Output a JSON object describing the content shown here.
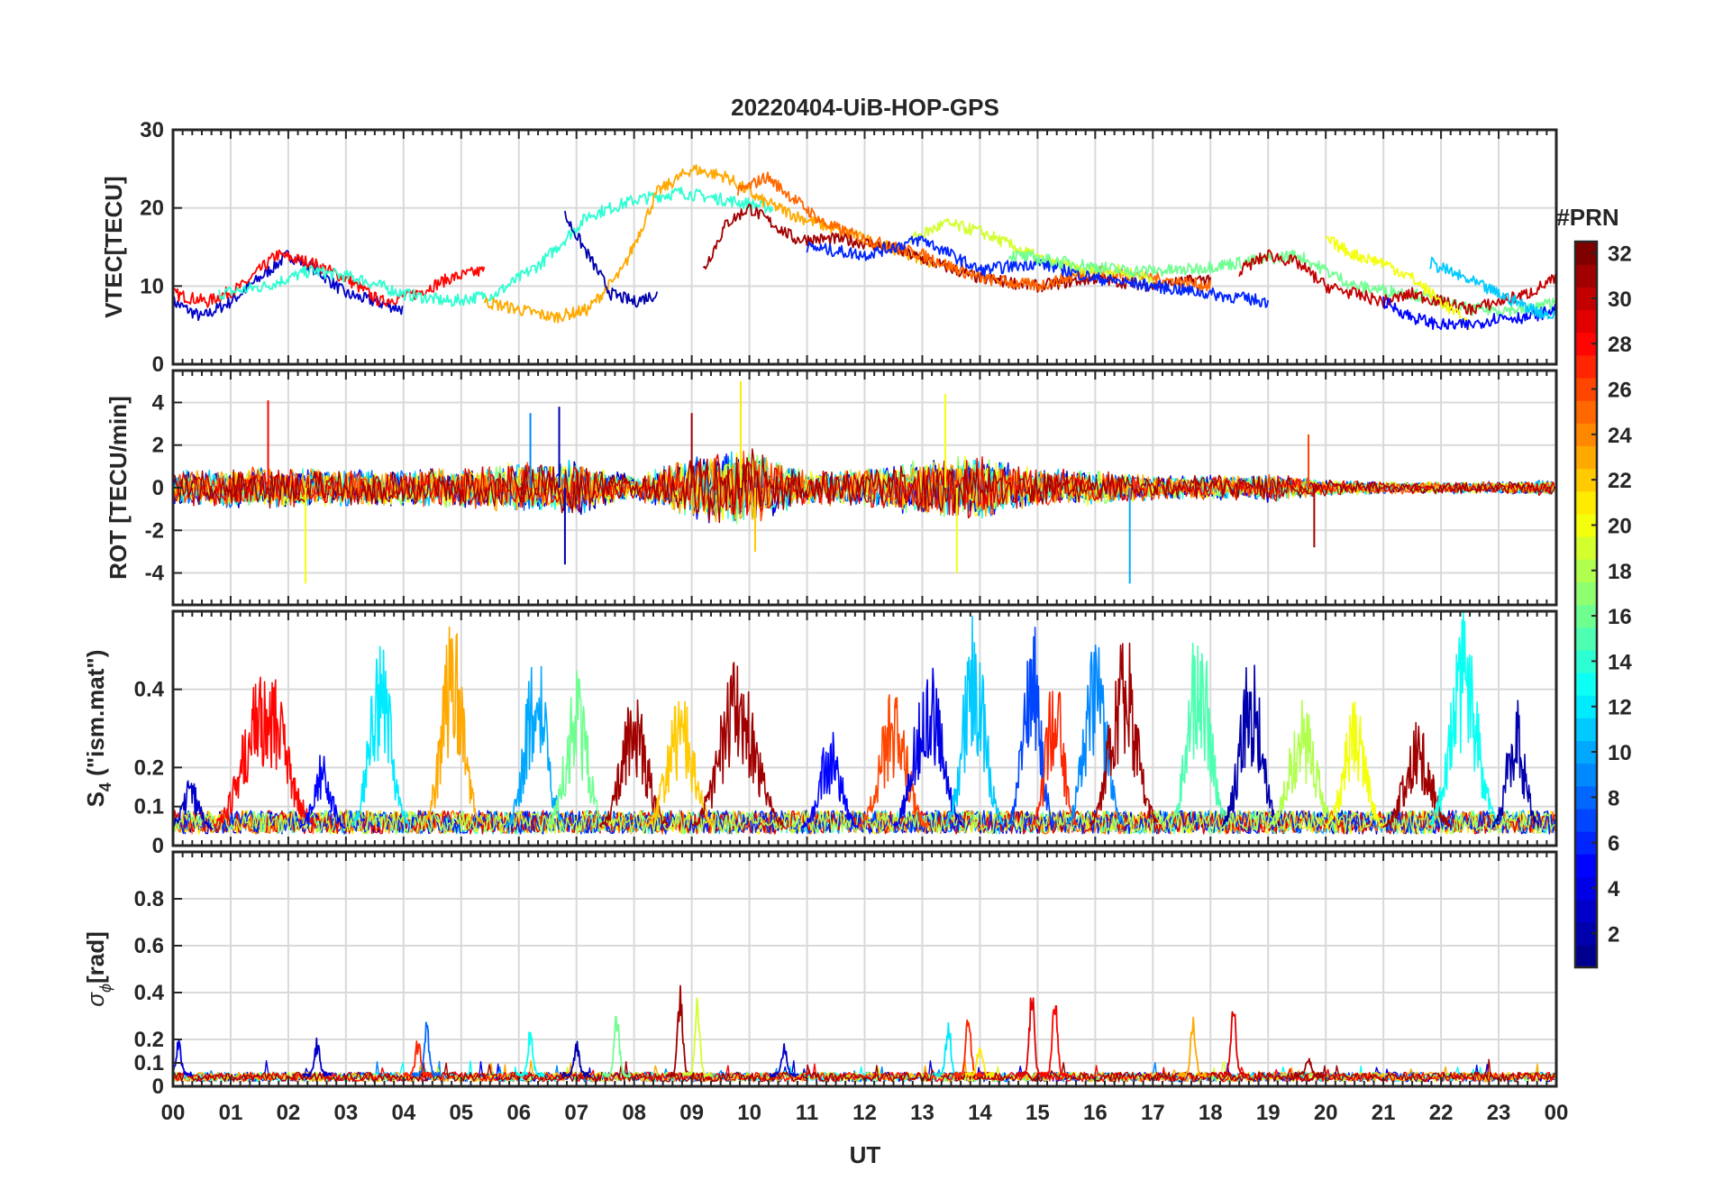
{
  "figure": {
    "title": "20220404-UiB-HOP-GPS",
    "xlabel": "UT",
    "x_ticks": [
      "00",
      "01",
      "02",
      "03",
      "04",
      "05",
      "06",
      "07",
      "08",
      "09",
      "10",
      "11",
      "12",
      "13",
      "14",
      "15",
      "16",
      "17",
      "18",
      "19",
      "20",
      "21",
      "22",
      "23",
      "00"
    ]
  },
  "colorbar": {
    "label": "#PRN",
    "range": [
      1,
      32
    ],
    "ticks": [
      2,
      4,
      6,
      8,
      10,
      12,
      14,
      16,
      18,
      20,
      22,
      24,
      26,
      28,
      30,
      32
    ],
    "colors": [
      "#00008f",
      "#0000ff",
      "#0080ff",
      "#00ffff",
      "#80ff80",
      "#ffff00",
      "#ff8000",
      "#ff0000",
      "#800000"
    ]
  },
  "chart_data": [
    {
      "type": "line",
      "id": "vtec",
      "ylabel": "VTEC[TECU]",
      "ylim": [
        0,
        30
      ],
      "yticks": [
        0,
        10,
        20,
        30
      ],
      "xlim": [
        0,
        24
      ],
      "grid": true,
      "series": [
        {
          "prn": 3,
          "x": [
            0,
            0.5,
            1,
            1.5,
            2,
            2.5,
            3,
            3.5,
            4
          ],
          "y": [
            8,
            6,
            8,
            11,
            14,
            12,
            9,
            8,
            7
          ]
        },
        {
          "prn": 28,
          "x": [
            0,
            0.6,
            1.2,
            1.8,
            2.4,
            3,
            3.6,
            4.2,
            4.8,
            5.4
          ],
          "y": [
            9,
            8,
            10,
            14,
            13,
            11,
            8,
            9,
            11,
            12
          ]
        },
        {
          "prn": 14,
          "x": [
            0.8,
            1.6,
            2.4,
            3.2,
            4,
            4.8,
            5.6,
            6.4,
            7.2,
            8,
            8.8,
            9.6,
            10.4
          ],
          "y": [
            9,
            10,
            12,
            11,
            9,
            8,
            9,
            13,
            19,
            21,
            22,
            21,
            20
          ]
        },
        {
          "prn": 23,
          "x": [
            5.4,
            6,
            6.6,
            7.2,
            7.8,
            8.4,
            9,
            9.6,
            10.2,
            10.8,
            11.6,
            12.4,
            13.2
          ],
          "y": [
            8,
            7,
            6,
            7,
            12,
            22,
            25,
            24,
            21,
            19,
            17,
            15,
            13
          ]
        },
        {
          "prn": 2,
          "x": [
            6.8,
            7.2,
            7.6,
            8,
            8.4
          ],
          "y": [
            19,
            14,
            9,
            8,
            9
          ]
        },
        {
          "prn": 31,
          "x": [
            9.2,
            9.6,
            10,
            10.4,
            10.8,
            11.6,
            12.4,
            13.2,
            14,
            15,
            16,
            17,
            18
          ],
          "y": [
            12,
            18,
            20,
            18,
            16,
            16,
            15,
            13,
            11,
            10,
            11,
            10,
            11
          ]
        },
        {
          "prn": 25,
          "x": [
            9.8,
            10.3,
            10.8,
            11.3,
            12,
            13,
            14,
            15,
            16,
            17,
            18
          ],
          "y": [
            22,
            24,
            21,
            18,
            16,
            14,
            11,
            10,
            12,
            11,
            10
          ]
        },
        {
          "prn": 19,
          "x": [
            12.8,
            13.4,
            14,
            14.6,
            15.2,
            15.8,
            16.4,
            17
          ],
          "y": [
            16,
            18,
            17,
            15,
            13,
            12,
            12,
            11
          ]
        },
        {
          "prn": 6,
          "x": [
            11,
            12,
            13,
            14,
            15,
            16,
            17,
            18,
            19
          ],
          "y": [
            15,
            14,
            16,
            12,
            13,
            11,
            10,
            9,
            8
          ]
        },
        {
          "prn": 16,
          "x": [
            14.5,
            15.5,
            16.5,
            17.5,
            18.5,
            19.5,
            20.5,
            21.5,
            22.5,
            23.5,
            24
          ],
          "y": [
            14,
            13,
            12,
            12,
            13,
            14,
            10,
            9,
            7,
            7,
            8
          ]
        },
        {
          "prn": 30,
          "x": [
            18.5,
            19,
            19.5,
            20,
            20.5,
            21,
            21.5,
            22,
            22.5,
            23,
            23.5,
            24
          ],
          "y": [
            12,
            14,
            13,
            10,
            9,
            8,
            9,
            8,
            7,
            8,
            9,
            11
          ]
        },
        {
          "prn": 20,
          "x": [
            20,
            20.5,
            21,
            21.5,
            22,
            22.5
          ],
          "y": [
            16,
            14,
            13,
            11,
            8,
            5
          ]
        },
        {
          "prn": 5,
          "x": [
            21,
            21.5,
            22,
            22.5,
            23,
            23.5,
            24
          ],
          "y": [
            8,
            6,
            5,
            5,
            6,
            6,
            7
          ]
        },
        {
          "prn": 11,
          "x": [
            21.8,
            22.4,
            23,
            23.6,
            24
          ],
          "y": [
            13,
            11,
            9,
            7,
            6
          ]
        }
      ]
    },
    {
      "type": "line",
      "id": "rot",
      "ylabel": "ROT [TECU/min]",
      "ylim": [
        -5.5,
        5.5
      ],
      "yticks": [
        -4,
        -2,
        0,
        2,
        4
      ],
      "xlim": [
        0,
        24
      ],
      "grid": true,
      "noise_bands": [
        {
          "x": [
            0,
            1,
            2,
            3,
            4,
            5,
            6,
            7,
            8,
            9,
            10,
            11,
            12,
            13,
            14,
            15,
            16,
            17,
            18,
            19,
            20,
            21,
            22,
            23,
            24
          ],
          "amp": [
            0.8,
            1,
            1,
            0.9,
            0.9,
            1,
            1.2,
            1.4,
            0.6,
            1.6,
            2,
            0.8,
            1,
            1.4,
            1.6,
            0.9,
            0.9,
            0.6,
            0.6,
            0.7,
            0.4,
            0.3,
            0.3,
            0.3,
            0.4
          ]
        }
      ],
      "peaks": [
        {
          "x": 1.65,
          "y": 4.1,
          "prn": 28
        },
        {
          "x": 2.3,
          "y": -4.5,
          "prn": 20
        },
        {
          "x": 6.2,
          "y": 3.5,
          "prn": 9
        },
        {
          "x": 6.7,
          "y": 3.8,
          "prn": 2
        },
        {
          "x": 6.8,
          "y": -3.6,
          "prn": 2
        },
        {
          "x": 9.0,
          "y": 3.5,
          "prn": 31
        },
        {
          "x": 9.85,
          "y": 5.0,
          "prn": 21
        },
        {
          "x": 10.1,
          "y": -3.0,
          "prn": 22
        },
        {
          "x": 13.4,
          "y": 4.4,
          "prn": 20
        },
        {
          "x": 13.6,
          "y": -4.0,
          "prn": 20
        },
        {
          "x": 16.6,
          "y": -4.5,
          "prn": 10
        },
        {
          "x": 19.7,
          "y": 2.5,
          "prn": 26
        },
        {
          "x": 19.8,
          "y": -2.8,
          "prn": 31
        }
      ]
    },
    {
      "type": "line",
      "id": "s4",
      "ylabel": "S_4 (\"ism.mat\")",
      "ylim": [
        0,
        0.6
      ],
      "yticks": [
        0,
        0.1,
        0.2,
        0.4
      ],
      "xlim": [
        0,
        24
      ],
      "grid": true,
      "bursts": [
        {
          "center": 0.3,
          "width": 0.4,
          "peak": 0.17,
          "prn": 3
        },
        {
          "center": 1.6,
          "width": 0.9,
          "peak": 0.5,
          "prn": 28
        },
        {
          "center": 2.6,
          "width": 0.4,
          "peak": 0.25,
          "prn": 5
        },
        {
          "center": 3.6,
          "width": 0.5,
          "peak": 0.54,
          "prn": 12
        },
        {
          "center": 4.85,
          "width": 0.5,
          "peak": 0.6,
          "prn": 23
        },
        {
          "center": 6.3,
          "width": 0.5,
          "peak": 0.53,
          "prn": 10
        },
        {
          "center": 7.0,
          "width": 0.5,
          "peak": 0.45,
          "prn": 16
        },
        {
          "center": 8.0,
          "width": 0.6,
          "peak": 0.39,
          "prn": 31
        },
        {
          "center": 8.8,
          "width": 0.6,
          "peak": 0.4,
          "prn": 22
        },
        {
          "center": 9.8,
          "width": 0.8,
          "peak": 0.5,
          "prn": 31
        },
        {
          "center": 11.4,
          "width": 0.5,
          "peak": 0.3,
          "prn": 5
        },
        {
          "center": 12.5,
          "width": 0.6,
          "peak": 0.41,
          "prn": 26
        },
        {
          "center": 13.1,
          "width": 0.6,
          "peak": 0.52,
          "prn": 4
        },
        {
          "center": 13.9,
          "width": 0.5,
          "peak": 0.6,
          "prn": 11
        },
        {
          "center": 14.9,
          "width": 0.4,
          "peak": 0.6,
          "prn": 7
        },
        {
          "center": 15.3,
          "width": 0.4,
          "peak": 0.46,
          "prn": 27
        },
        {
          "center": 16.0,
          "width": 0.5,
          "peak": 0.55,
          "prn": 9
        },
        {
          "center": 16.5,
          "width": 0.6,
          "peak": 0.56,
          "prn": 31
        },
        {
          "center": 17.8,
          "width": 0.5,
          "peak": 0.6,
          "prn": 15
        },
        {
          "center": 18.7,
          "width": 0.5,
          "peak": 0.5,
          "prn": 2
        },
        {
          "center": 19.6,
          "width": 0.6,
          "peak": 0.38,
          "prn": 18
        },
        {
          "center": 20.5,
          "width": 0.5,
          "peak": 0.38,
          "prn": 20
        },
        {
          "center": 21.6,
          "width": 0.6,
          "peak": 0.32,
          "prn": 31
        },
        {
          "center": 22.4,
          "width": 0.6,
          "peak": 0.6,
          "prn": 13
        },
        {
          "center": 23.3,
          "width": 0.4,
          "peak": 0.38,
          "prn": 2
        }
      ]
    },
    {
      "type": "line",
      "id": "sigma_phi",
      "ylabel": "σ_ϕ[rad]",
      "ylim": [
        0,
        1
      ],
      "yticks": [
        0,
        0.1,
        0.2,
        0.4,
        0.6,
        0.8
      ],
      "xlim": [
        0,
        24
      ],
      "grid": true,
      "baseline": 0.04,
      "peaks": [
        {
          "x": 0.1,
          "y": 0.19,
          "prn": 4
        },
        {
          "x": 2.5,
          "y": 0.2,
          "prn": 3
        },
        {
          "x": 4.25,
          "y": 0.2,
          "prn": 27
        },
        {
          "x": 4.4,
          "y": 0.28,
          "prn": 8
        },
        {
          "x": 6.2,
          "y": 0.24,
          "prn": 13
        },
        {
          "x": 7.0,
          "y": 0.2,
          "prn": 2
        },
        {
          "x": 7.7,
          "y": 0.34,
          "prn": 16
        },
        {
          "x": 8.8,
          "y": 0.43,
          "prn": 31
        },
        {
          "x": 9.1,
          "y": 0.4,
          "prn": 19
        },
        {
          "x": 10.6,
          "y": 0.18,
          "prn": 3
        },
        {
          "x": 13.45,
          "y": 0.3,
          "prn": 12
        },
        {
          "x": 13.8,
          "y": 0.36,
          "prn": 27
        },
        {
          "x": 14.0,
          "y": 0.2,
          "prn": 21
        },
        {
          "x": 14.9,
          "y": 0.44,
          "prn": 29
        },
        {
          "x": 15.3,
          "y": 0.42,
          "prn": 28
        },
        {
          "x": 17.7,
          "y": 0.3,
          "prn": 23
        },
        {
          "x": 18.4,
          "y": 0.39,
          "prn": 29
        },
        {
          "x": 19.7,
          "y": 0.12,
          "prn": 31
        }
      ]
    }
  ]
}
